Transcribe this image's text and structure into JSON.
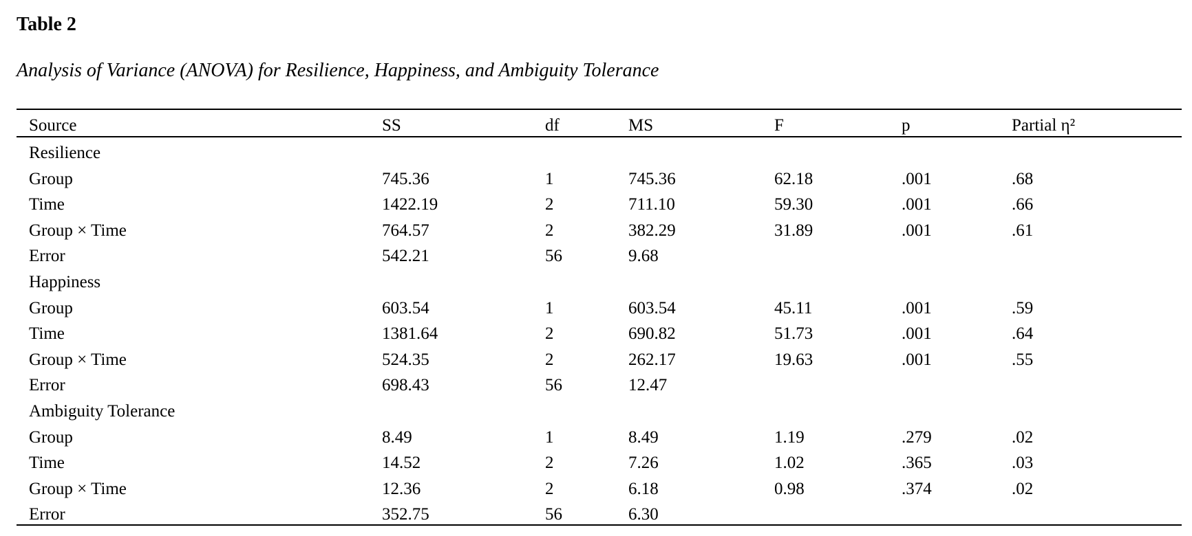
{
  "table": {
    "label": "Table 2",
    "title": "Analysis of Variance (ANOVA) for Resilience, Happiness, and Ambiguity Tolerance",
    "columns": [
      "Source",
      "SS",
      "df",
      "MS",
      "F",
      "p",
      "Partial η²"
    ],
    "rows": [
      {
        "source": "Resilience",
        "header": true
      },
      {
        "source": "Group",
        "ss": "745.36",
        "df": "1",
        "ms": "745.36",
        "f": "62.18",
        "p": ".001",
        "eta": ".68"
      },
      {
        "source": "Time",
        "ss": "1422.19",
        "df": "2",
        "ms": "711.10",
        "f": "59.30",
        "p": ".001",
        "eta": ".66"
      },
      {
        "source": "Group × Time",
        "ss": "764.57",
        "df": "2",
        "ms": "382.29",
        "f": "31.89",
        "p": ".001",
        "eta": ".61"
      },
      {
        "source": "Error",
        "ss": "542.21",
        "df": "56",
        "ms": "9.68",
        "f": "",
        "p": "",
        "eta": ""
      },
      {
        "source": "Happiness",
        "header": true
      },
      {
        "source": "Group",
        "ss": "603.54",
        "df": "1",
        "ms": "603.54",
        "f": "45.11",
        "p": ".001",
        "eta": ".59"
      },
      {
        "source": "Time",
        "ss": "1381.64",
        "df": "2",
        "ms": "690.82",
        "f": "51.73",
        "p": ".001",
        "eta": ".64"
      },
      {
        "source": "Group × Time",
        "ss": "524.35",
        "df": "2",
        "ms": "262.17",
        "f": "19.63",
        "p": ".001",
        "eta": ".55"
      },
      {
        "source": "Error",
        "ss": "698.43",
        "df": "56",
        "ms": "12.47",
        "f": "",
        "p": "",
        "eta": ""
      },
      {
        "source": "Ambiguity Tolerance",
        "header": true
      },
      {
        "source": "Group",
        "ss": "8.49",
        "df": "1",
        "ms": "8.49",
        "f": "1.19",
        "p": ".279",
        "eta": ".02"
      },
      {
        "source": "Time",
        "ss": "14.52",
        "df": "2",
        "ms": "7.26",
        "f": "1.02",
        "p": ".365",
        "eta": ".03"
      },
      {
        "source": "Group × Time",
        "ss": "12.36",
        "df": "2",
        "ms": "6.18",
        "f": "0.98",
        "p": ".374",
        "eta": ".02"
      },
      {
        "source": "Error",
        "ss": "352.75",
        "df": "56",
        "ms": "6.30",
        "f": "",
        "p": "",
        "eta": ""
      }
    ]
  }
}
